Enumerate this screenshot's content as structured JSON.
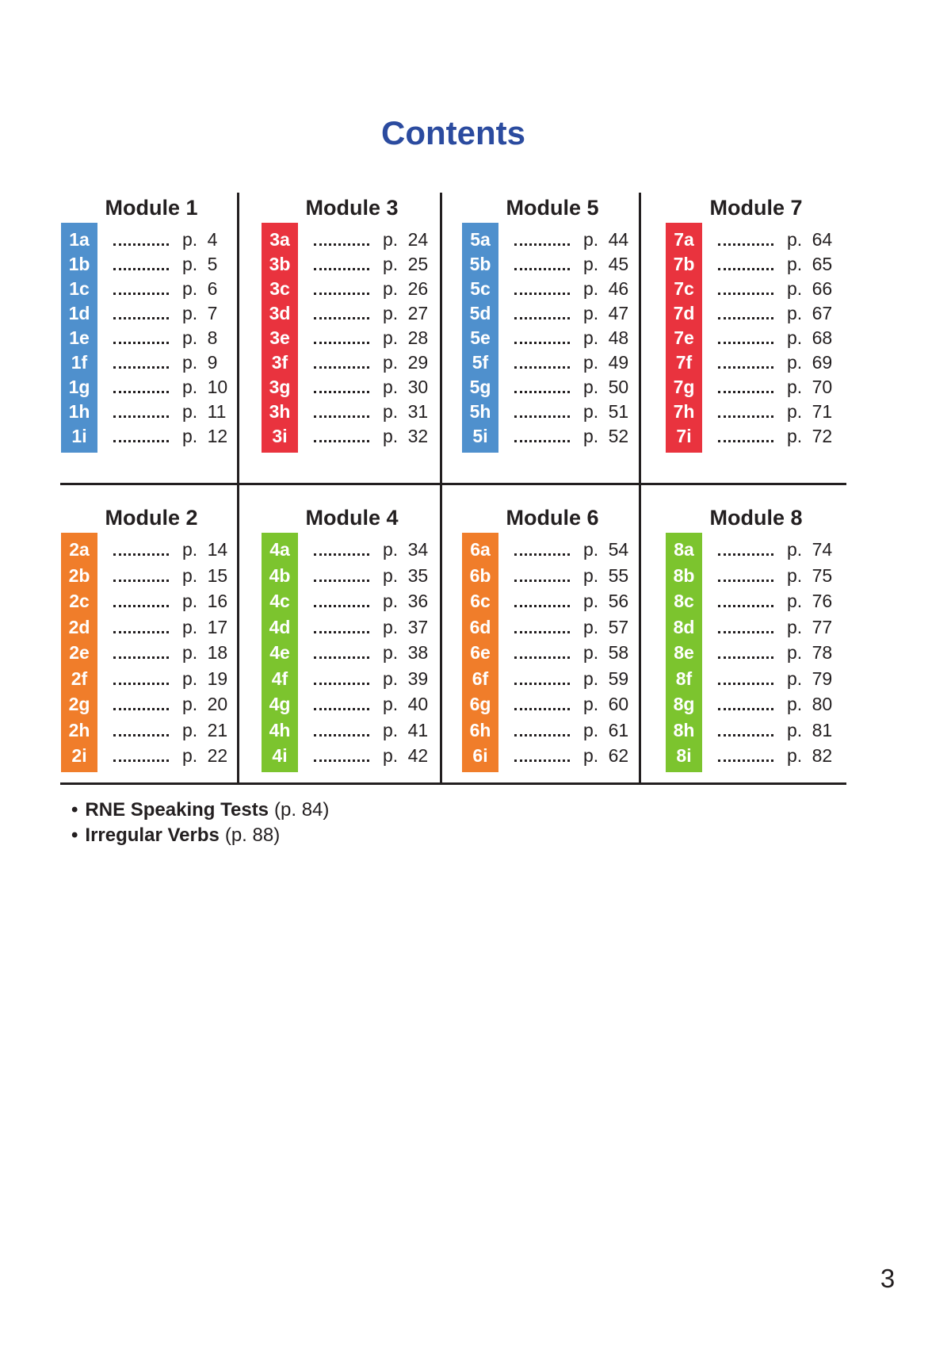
{
  "page": {
    "title": "Contents",
    "page_number": "3"
  },
  "colors": {
    "title_blue": "#2b4b9f",
    "text": "#231f20",
    "rule": "#231f20",
    "badge_blue": "#4f90cd",
    "badge_orange": "#f07d2a",
    "badge_red": "#e9333e",
    "badge_green": "#7cc42e"
  },
  "modules": [
    {
      "name": "Module 1",
      "badge_color": "#4f90cd",
      "items": [
        {
          "label": "1a",
          "page": "p. 4"
        },
        {
          "label": "1b",
          "page": "p. 5"
        },
        {
          "label": "1c",
          "page": "p. 6"
        },
        {
          "label": "1d",
          "page": "p. 7"
        },
        {
          "label": "1e",
          "page": "p. 8"
        },
        {
          "label": "1f",
          "page": "p. 9"
        },
        {
          "label": "1g",
          "page": "p. 10"
        },
        {
          "label": "1h",
          "page": "p. 11"
        },
        {
          "label": "1i",
          "page": "p. 12"
        }
      ]
    },
    {
      "name": "Module 2",
      "badge_color": "#f07d2a",
      "items": [
        {
          "label": "2a",
          "page": "p. 14"
        },
        {
          "label": "2b",
          "page": "p. 15"
        },
        {
          "label": "2c",
          "page": "p. 16"
        },
        {
          "label": "2d",
          "page": "p. 17"
        },
        {
          "label": "2e",
          "page": "p. 18"
        },
        {
          "label": "2f",
          "page": "p. 19"
        },
        {
          "label": "2g",
          "page": "p. 20"
        },
        {
          "label": "2h",
          "page": "p. 21"
        },
        {
          "label": "2i",
          "page": "p. 22"
        }
      ]
    },
    {
      "name": "Module 3",
      "badge_color": "#e9333e",
      "items": [
        {
          "label": "3a",
          "page": "p. 24"
        },
        {
          "label": "3b",
          "page": "p. 25"
        },
        {
          "label": "3c",
          "page": "p. 26"
        },
        {
          "label": "3d",
          "page": "p. 27"
        },
        {
          "label": "3e",
          "page": "p. 28"
        },
        {
          "label": "3f",
          "page": "p. 29"
        },
        {
          "label": "3g",
          "page": "p. 30"
        },
        {
          "label": "3h",
          "page": "p. 31"
        },
        {
          "label": "3i",
          "page": "p. 32"
        }
      ]
    },
    {
      "name": "Module 4",
      "badge_color": "#7cc42e",
      "items": [
        {
          "label": "4a",
          "page": "p. 34"
        },
        {
          "label": "4b",
          "page": "p. 35"
        },
        {
          "label": "4c",
          "page": "p. 36"
        },
        {
          "label": "4d",
          "page": "p. 37"
        },
        {
          "label": "4e",
          "page": "p. 38"
        },
        {
          "label": "4f",
          "page": "p. 39"
        },
        {
          "label": "4g",
          "page": "p. 40"
        },
        {
          "label": "4h",
          "page": "p. 41"
        },
        {
          "label": "4i",
          "page": "p. 42"
        }
      ]
    },
    {
      "name": "Module 5",
      "badge_color": "#4f90cd",
      "items": [
        {
          "label": "5a",
          "page": "p. 44"
        },
        {
          "label": "5b",
          "page": "p. 45"
        },
        {
          "label": "5c",
          "page": "p. 46"
        },
        {
          "label": "5d",
          "page": "p. 47"
        },
        {
          "label": "5e",
          "page": "p. 48"
        },
        {
          "label": "5f",
          "page": "p. 49"
        },
        {
          "label": "5g",
          "page": "p. 50"
        },
        {
          "label": "5h",
          "page": "p. 51"
        },
        {
          "label": "5i",
          "page": "p. 52"
        }
      ]
    },
    {
      "name": "Module 6",
      "badge_color": "#f07d2a",
      "items": [
        {
          "label": "6a",
          "page": "p. 54"
        },
        {
          "label": "6b",
          "page": "p. 55"
        },
        {
          "label": "6c",
          "page": "p. 56"
        },
        {
          "label": "6d",
          "page": "p. 57"
        },
        {
          "label": "6e",
          "page": "p. 58"
        },
        {
          "label": "6f",
          "page": "p. 59"
        },
        {
          "label": "6g",
          "page": "p. 60"
        },
        {
          "label": "6h",
          "page": "p. 61"
        },
        {
          "label": "6i",
          "page": "p. 62"
        }
      ]
    },
    {
      "name": "Module 7",
      "badge_color": "#e9333e",
      "items": [
        {
          "label": "7a",
          "page": "p. 64"
        },
        {
          "label": "7b",
          "page": "p. 65"
        },
        {
          "label": "7c",
          "page": "p. 66"
        },
        {
          "label": "7d",
          "page": "p. 67"
        },
        {
          "label": "7e",
          "page": "p. 68"
        },
        {
          "label": "7f",
          "page": "p. 69"
        },
        {
          "label": "7g",
          "page": "p. 70"
        },
        {
          "label": "7h",
          "page": "p. 71"
        },
        {
          "label": "7i",
          "page": "p. 72"
        }
      ]
    },
    {
      "name": "Module 8",
      "badge_color": "#7cc42e",
      "items": [
        {
          "label": "8a",
          "page": "p. 74"
        },
        {
          "label": "8b",
          "page": "p. 75"
        },
        {
          "label": "8c",
          "page": "p. 76"
        },
        {
          "label": "8d",
          "page": "p. 77"
        },
        {
          "label": "8e",
          "page": "p. 78"
        },
        {
          "label": "8f",
          "page": "p. 79"
        },
        {
          "label": "8g",
          "page": "p. 80"
        },
        {
          "label": "8h",
          "page": "p. 81"
        },
        {
          "label": "8i",
          "page": "p. 82"
        }
      ]
    }
  ],
  "extras": [
    {
      "title": "RNE Speaking Tests",
      "page": "(p. 84)"
    },
    {
      "title": "Irregular Verbs",
      "page": "(p. 88)"
    }
  ]
}
